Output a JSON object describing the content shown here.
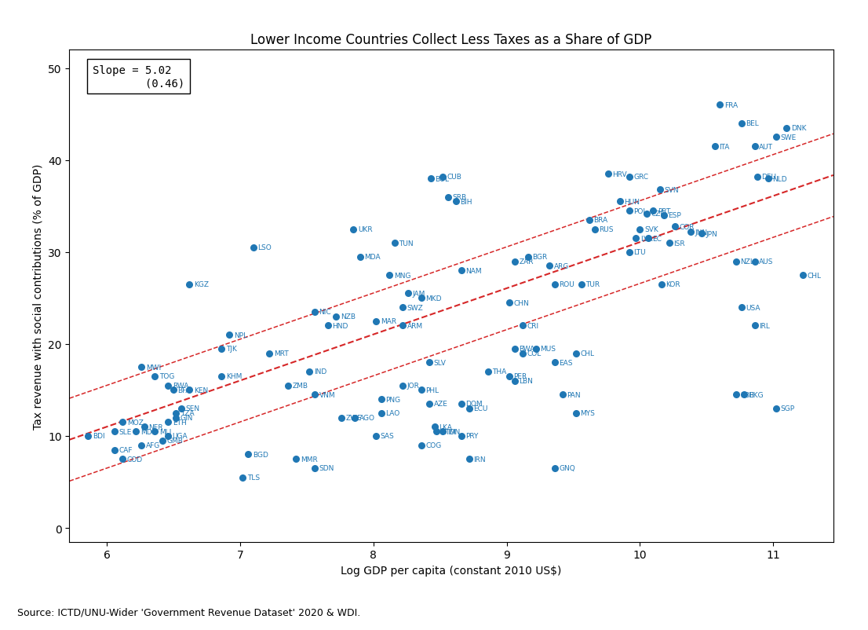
{
  "chart_data": {
    "type": "scatter",
    "title": "Lower Income Countries Collect Less Taxes as a Share of GDP",
    "x_label": "Log GDP per capita (constant 2010 US$)",
    "y_label": "Tax revenue with social contributions (% of GDP)",
    "annotations": [
      "Slope = 5.02\n        (0.46)"
    ],
    "note": "Source: ICTD/UNU-Wider 'Government Revenue Dataset' 2020 & WDI.",
    "xlim": [
      5.72,
      11.45
    ],
    "ylim": [
      -1.5,
      52
    ],
    "xticks": [
      6,
      7,
      8,
      9,
      10,
      11
    ],
    "yticks": [
      0,
      10,
      20,
      30,
      40,
      50
    ],
    "grid": false,
    "marker": "o",
    "fit_lines": [
      {
        "slope": 5.02,
        "intercept": -19.12,
        "line_style": "dashed"
      },
      {
        "slope": 5.02,
        "intercept": -14.62,
        "line_style": "dashed"
      },
      {
        "slope": 5.02,
        "intercept": -23.62,
        "line_style": "dashed"
      }
    ],
    "labels": [
      "FRA",
      "BEL",
      "DNK",
      "SWE",
      "AUT",
      "ITA",
      "NLD",
      "DEU",
      "HRV",
      "GRC",
      "CUB",
      "BOL",
      "SRB",
      "BIH",
      "SVN",
      "HUN",
      "POL",
      "CZE",
      "ESP",
      "PRT",
      "UKR",
      "BRA",
      "RUS",
      "SVK",
      "LVA",
      "COR",
      "JPN",
      "JNN",
      "TUN",
      "LSO",
      "LTU",
      "EC",
      "ISR",
      "MDA",
      "BGR",
      "ZAR",
      "NAM",
      "ARG",
      "KGZ",
      "MNG",
      "ROU",
      "TUR",
      "KOR",
      "AUS",
      "NZL",
      "CHL",
      "CHN",
      "JAM",
      "MKD",
      "SWZ",
      "NPL",
      "NIC",
      "NZB",
      "HND",
      "CRI",
      "MAR",
      "ARM",
      "TJK",
      "MWI",
      "TOG",
      "RWA",
      "KHM",
      "MRT",
      "BFA",
      "KEN",
      "IND",
      "SLV",
      "BWA",
      "COL",
      "MUS",
      "EAS",
      "CHL",
      "ZMB",
      "VNM",
      "THA",
      "PER",
      "LBN",
      "PHL",
      "JOR",
      "PAN",
      "MYS",
      "HKG",
      "KBE",
      "SGP",
      "USA",
      "IRL",
      "CAF",
      "COD",
      "AFG",
      "GMB",
      "NER",
      "GIN",
      "ETH",
      "MLI",
      "UGA",
      "MDG",
      "TZA",
      "SEN",
      "BGD",
      "MMR",
      "TLS",
      "SDN",
      "PNG",
      "SAS",
      "COG",
      "LKA",
      "GTM",
      "IDN",
      "PRY",
      "IRN",
      "GNQ",
      "AZE",
      "DOM",
      "ECU",
      "ZWE",
      "LAO",
      "AGO",
      "BDI",
      "SLE",
      "MOZ"
    ],
    "x": [
      10.6,
      10.76,
      11.1,
      11.02,
      10.86,
      10.56,
      10.96,
      10.88,
      9.76,
      9.92,
      8.52,
      8.43,
      8.56,
      8.62,
      10.15,
      9.85,
      9.92,
      10.05,
      10.18,
      10.1,
      7.85,
      9.62,
      9.66,
      10.0,
      9.97,
      10.26,
      10.46,
      10.38,
      8.16,
      7.1,
      9.92,
      10.06,
      10.22,
      7.9,
      9.16,
      9.06,
      8.66,
      9.32,
      6.62,
      8.12,
      9.36,
      9.56,
      10.16,
      10.86,
      10.72,
      11.22,
      9.02,
      8.26,
      8.36,
      8.22,
      6.92,
      7.56,
      7.72,
      7.66,
      9.12,
      8.02,
      8.22,
      6.86,
      6.26,
      6.36,
      6.46,
      6.86,
      7.22,
      6.5,
      6.62,
      7.52,
      8.42,
      9.06,
      9.12,
      9.22,
      9.36,
      9.52,
      7.36,
      7.56,
      8.86,
      9.02,
      9.06,
      8.36,
      8.22,
      9.42,
      9.52,
      10.78,
      10.72,
      11.02,
      10.76,
      10.86,
      6.06,
      6.12,
      6.26,
      6.42,
      6.28,
      6.52,
      6.46,
      6.36,
      6.46,
      6.22,
      6.52,
      6.56,
      7.06,
      7.42,
      7.02,
      7.56,
      8.06,
      8.02,
      8.36,
      8.46,
      8.47,
      8.52,
      8.66,
      8.72,
      9.36,
      8.42,
      8.66,
      8.72,
      7.76,
      8.06,
      7.86,
      5.86,
      6.06,
      6.12
    ],
    "values": [
      46.0,
      44.0,
      43.5,
      42.5,
      41.5,
      41.5,
      38.0,
      38.2,
      38.5,
      38.2,
      38.2,
      38.0,
      36.0,
      35.5,
      36.8,
      35.5,
      34.5,
      34.2,
      34.0,
      34.5,
      32.5,
      33.5,
      32.5,
      32.5,
      31.5,
      32.8,
      32.0,
      32.2,
      31.0,
      30.5,
      30.0,
      31.5,
      31.0,
      29.5,
      29.5,
      29.0,
      28.0,
      28.5,
      26.5,
      27.5,
      26.5,
      26.5,
      26.5,
      29.0,
      29.0,
      27.5,
      24.5,
      25.5,
      25.0,
      24.0,
      21.0,
      23.5,
      23.0,
      22.0,
      22.0,
      22.5,
      22.0,
      19.5,
      17.5,
      16.5,
      15.5,
      16.5,
      19.0,
      15.0,
      15.0,
      17.0,
      18.0,
      19.5,
      19.0,
      19.5,
      18.0,
      19.0,
      15.5,
      14.5,
      17.0,
      16.5,
      16.0,
      15.0,
      15.5,
      14.5,
      12.5,
      14.5,
      14.5,
      13.0,
      24.0,
      22.0,
      8.5,
      7.5,
      9.0,
      9.5,
      11.0,
      12.0,
      11.5,
      10.5,
      10.0,
      10.5,
      12.5,
      13.0,
      8.0,
      7.5,
      5.5,
      6.5,
      14.0,
      10.0,
      9.0,
      11.0,
      10.5,
      10.5,
      10.0,
      7.5,
      6.5,
      13.5,
      13.5,
      13.0,
      12.0,
      12.5,
      12.0,
      10.0,
      10.5,
      11.5
    ]
  }
}
